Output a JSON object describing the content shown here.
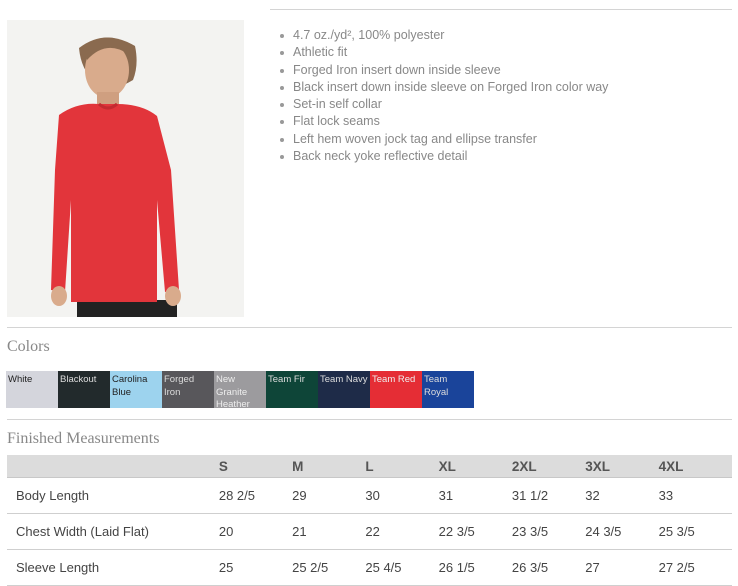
{
  "features": [
    "4.7 oz./yd², 100% polyester",
    "Athletic fit",
    "Forged Iron insert down inside sleeve",
    "Black insert down inside sleeve on Forged Iron color way",
    "Set-in self collar",
    "Flat lock seams",
    "Left hem woven jock tag and ellipse transfer",
    "Back neck yoke reflective detail"
  ],
  "colors_title": "Colors",
  "colors": [
    {
      "name": "White",
      "hex": "#d4d5dc",
      "text": "#222"
    },
    {
      "name": "Blackout",
      "hex": "#222a2c",
      "text": "#ddd"
    },
    {
      "name": "Carolina Blue",
      "hex": "#9dd3ee",
      "text": "#222"
    },
    {
      "name": "Forged Iron",
      "hex": "#58575b",
      "text": "#ddd"
    },
    {
      "name": "New Granite Heather",
      "hex": "#9c9b9e",
      "text": "#eee"
    },
    {
      "name": "Team Fir",
      "hex": "#0e4538",
      "text": "#ddd"
    },
    {
      "name": "Team Navy",
      "hex": "#1e2b48",
      "text": "#ddd"
    },
    {
      "name": "Team Red",
      "hex": "#e52d35",
      "text": "#eee"
    },
    {
      "name": "Team Royal",
      "hex": "#1a449a",
      "text": "#ddd"
    }
  ],
  "measurements_title": "Finished Measurements",
  "table": {
    "headers": [
      "",
      "S",
      "M",
      "L",
      "XL",
      "2XL",
      "3XL",
      "4XL"
    ],
    "rows": [
      [
        "Body Length",
        "28 2/5",
        "29",
        "30",
        "31",
        "31 1/2",
        "32",
        "33"
      ],
      [
        "Chest Width (Laid Flat)",
        "20",
        "21",
        "22",
        "22 3/5",
        "23 3/5",
        "24 3/5",
        "25 3/5"
      ],
      [
        "Sleeve Length",
        "25",
        "25 2/5",
        "25 4/5",
        "26 1/5",
        "26 3/5",
        "27",
        "27 2/5"
      ]
    ]
  }
}
